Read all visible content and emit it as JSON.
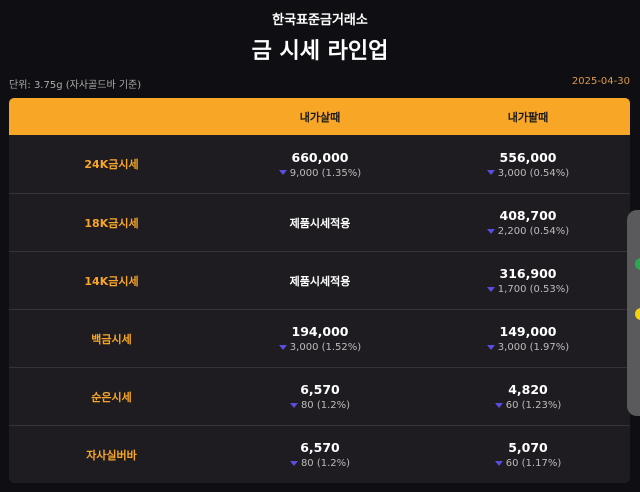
{
  "header": {
    "brand": "한국표준금거래소",
    "title": "금 시세 라인업",
    "unit": "단위: 3.75g (자사골드바 기준)",
    "date": "2025-04-30"
  },
  "table": {
    "columns": [
      "",
      "내가살때",
      "내가팔때"
    ],
    "rows": [
      {
        "label": "24K금시세",
        "buy": "660,000",
        "buy_change": "9,000 (1.35%)",
        "sell": "556,000",
        "sell_change": "3,000 (0.54%)"
      },
      {
        "label": "18K금시세",
        "buy": "제품시세적용",
        "buy_change": null,
        "sell": "408,700",
        "sell_change": "2,200 (0.54%)"
      },
      {
        "label": "14K금시세",
        "buy": "제품시세적용",
        "buy_change": null,
        "sell": "316,900",
        "sell_change": "1,700 (0.53%)"
      },
      {
        "label": "백금시세",
        "buy": "194,000",
        "buy_change": "3,000 (1.52%)",
        "sell": "149,000",
        "sell_change": "3,000 (1.97%)"
      },
      {
        "label": "순은시세",
        "buy": "6,570",
        "buy_change": "80 (1.2%)",
        "sell": "4,820",
        "sell_change": "60 (1.23%)"
      },
      {
        "label": "자사실버바",
        "buy": "6,570",
        "buy_change": "80 (1.2%)",
        "sell": "5,070",
        "sell_change": "60 (1.17%)"
      }
    ]
  },
  "colors": {
    "accent": "#f7a626",
    "down": "#5b4ce0"
  }
}
